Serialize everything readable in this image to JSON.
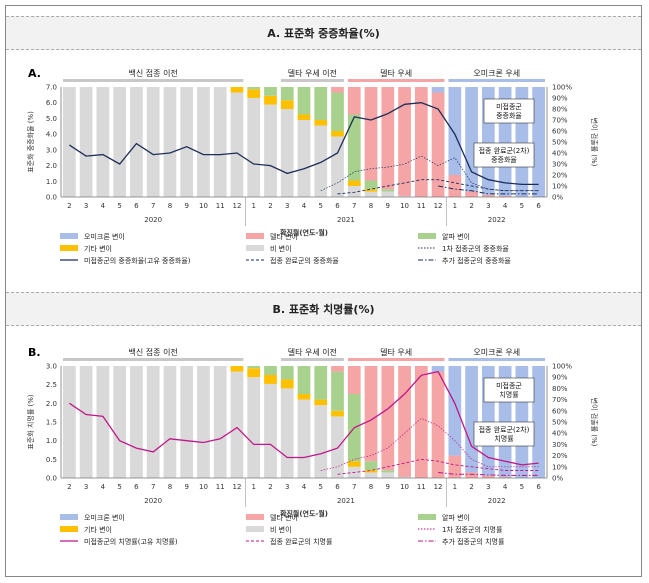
{
  "section_titles": [
    "A. 표준화 중증화율(%)",
    "B. 표준화 치명률(%)"
  ],
  "chart_data": [
    {
      "type": "bar+line",
      "panel_label": "A.",
      "segments": [
        "백신 접종 이전",
        "델타 우세 이전",
        "델타 우세",
        "오미크론 우세"
      ],
      "x_months": [
        "2",
        "3",
        "4",
        "5",
        "6",
        "7",
        "8",
        "9",
        "10",
        "11",
        "12",
        "1",
        "2",
        "3",
        "4",
        "5",
        "6",
        "7",
        "8",
        "9",
        "10",
        "11",
        "12",
        "1",
        "2",
        "3",
        "4",
        "5",
        "6"
      ],
      "year_labels": [
        "2020",
        "2021",
        "2022"
      ],
      "xlabel": "확진월(연도-월)",
      "ylabel": "표준화 중증화율 (%)",
      "y2label": "변이 검출률 (%)",
      "ylim": [
        0,
        7
      ],
      "y_ticks": [
        "0.0",
        "1.0",
        "2.0",
        "3.0",
        "4.0",
        "5.0",
        "6.0",
        "7.0"
      ],
      "y2_ticks": [
        "0%",
        "10%",
        "20%",
        "30%",
        "40%",
        "50%",
        "60%",
        "70%",
        "80%",
        "90%",
        "100%"
      ],
      "variant_share_pct": {
        "omicron": [
          0,
          0,
          0,
          0,
          0,
          0,
          0,
          0,
          0,
          0,
          0,
          0,
          0,
          0,
          0,
          0,
          0,
          0,
          0,
          0,
          0,
          0,
          5,
          80,
          95,
          98,
          99,
          100,
          100
        ],
        "delta": [
          0,
          0,
          0,
          0,
          0,
          0,
          0,
          0,
          0,
          0,
          0,
          0,
          0,
          0,
          0,
          0,
          5,
          25,
          85,
          93,
          99,
          100,
          95,
          20,
          5,
          2,
          1,
          0,
          0
        ],
        "alpha": [
          0,
          0,
          0,
          0,
          0,
          0,
          0,
          0,
          0,
          0,
          0,
          2,
          8,
          12,
          25,
          30,
          35,
          60,
          8,
          2,
          0,
          0,
          0,
          0,
          0,
          0,
          0,
          0,
          0
        ],
        "other": [
          0,
          0,
          0,
          0,
          0,
          0,
          0,
          0,
          0,
          0,
          5,
          8,
          8,
          8,
          5,
          5,
          5,
          5,
          2,
          0,
          0,
          0,
          0,
          0,
          0,
          0,
          0,
          0,
          0
        ],
        "none": [
          100,
          100,
          100,
          100,
          100,
          100,
          100,
          100,
          100,
          100,
          95,
          90,
          84,
          80,
          70,
          65,
          55,
          10,
          5,
          5,
          1,
          0,
          0,
          0,
          0,
          0,
          0,
          0,
          0
        ]
      },
      "series": [
        {
          "name": "미접종군의 중증화율(고유 중증화율)",
          "values": [
            3.3,
            2.6,
            2.7,
            2.1,
            3.4,
            2.7,
            2.8,
            3.2,
            2.7,
            2.7,
            2.8,
            2.1,
            2.0,
            1.5,
            1.8,
            2.2,
            2.8,
            5.1,
            4.9,
            5.3,
            5.9,
            6.0,
            5.6,
            4.0,
            1.6,
            1.1,
            0.9,
            0.8,
            0.8
          ]
        },
        {
          "name": "1차 접종군의 중증화율",
          "values": [
            null,
            null,
            null,
            null,
            null,
            null,
            null,
            null,
            null,
            null,
            null,
            null,
            null,
            null,
            null,
            0.4,
            0.9,
            1.6,
            1.8,
            1.9,
            2.1,
            2.6,
            2.0,
            2.5,
            0.9,
            0.5,
            0.4,
            0.4,
            0.4
          ]
        },
        {
          "name": "접종 완료군의 중증화율",
          "values": [
            null,
            null,
            null,
            null,
            null,
            null,
            null,
            null,
            null,
            null,
            null,
            null,
            null,
            null,
            null,
            null,
            0.2,
            0.3,
            0.5,
            0.7,
            0.9,
            1.1,
            1.1,
            0.9,
            0.7,
            0.5,
            0.4,
            0.4,
            0.4
          ]
        },
        {
          "name": "추가 접종군의 중증화율",
          "values": [
            null,
            null,
            null,
            null,
            null,
            null,
            null,
            null,
            null,
            null,
            null,
            null,
            null,
            null,
            null,
            null,
            null,
            null,
            null,
            null,
            null,
            null,
            0.7,
            0.5,
            0.4,
            0.2,
            0.2,
            0.2,
            0.2
          ]
        }
      ],
      "annotations": [
        "미접종군 중증화율",
        "접종 완료군(2차) 중증화율"
      ],
      "legend": [
        "오미크론 변이",
        "델타 변이",
        "알파 변이",
        "기타 변이",
        "비 변이",
        "1차 접종군의 중증화율",
        "미접종군의 중증화율(고유 중증화율)",
        "접종 완료군의 중증화율",
        "추가 접종군의 중증화율"
      ]
    },
    {
      "type": "bar+line",
      "panel_label": "B.",
      "segments": [
        "백신 접종 이전",
        "델타 우세 이전",
        "델타 우세",
        "오미크론 우세"
      ],
      "x_months": [
        "2",
        "3",
        "4",
        "5",
        "6",
        "7",
        "8",
        "9",
        "10",
        "11",
        "12",
        "1",
        "2",
        "3",
        "4",
        "5",
        "6",
        "7",
        "8",
        "9",
        "10",
        "11",
        "12",
        "1",
        "2",
        "3",
        "4",
        "5",
        "6"
      ],
      "year_labels": [
        "2020",
        "2021",
        "2022"
      ],
      "xlabel": "확진월(연도-월)",
      "ylabel": "표준화 치명률 (%)",
      "y2label": "변이 검출률 (%)",
      "ylim": [
        0,
        3
      ],
      "y_ticks": [
        "0.0",
        "0.5",
        "1.0",
        "1.5",
        "2.0",
        "2.5",
        "3.0"
      ],
      "y2_ticks": [
        "0%",
        "10%",
        "20%",
        "30%",
        "40%",
        "50%",
        "60%",
        "70%",
        "80%",
        "90%",
        "100%"
      ],
      "variant_share_pct": {
        "omicron": [
          0,
          0,
          0,
          0,
          0,
          0,
          0,
          0,
          0,
          0,
          0,
          0,
          0,
          0,
          0,
          0,
          0,
          0,
          0,
          0,
          0,
          0,
          5,
          80,
          95,
          98,
          99,
          100,
          100
        ],
        "delta": [
          0,
          0,
          0,
          0,
          0,
          0,
          0,
          0,
          0,
          0,
          0,
          0,
          0,
          0,
          0,
          0,
          5,
          25,
          85,
          93,
          99,
          100,
          95,
          20,
          5,
          2,
          1,
          0,
          0
        ],
        "alpha": [
          0,
          0,
          0,
          0,
          0,
          0,
          0,
          0,
          0,
          0,
          0,
          2,
          8,
          12,
          25,
          30,
          35,
          60,
          8,
          2,
          0,
          0,
          0,
          0,
          0,
          0,
          0,
          0,
          0
        ],
        "other": [
          0,
          0,
          0,
          0,
          0,
          0,
          0,
          0,
          0,
          0,
          5,
          8,
          8,
          8,
          5,
          5,
          5,
          5,
          2,
          0,
          0,
          0,
          0,
          0,
          0,
          0,
          0,
          0,
          0
        ],
        "none": [
          100,
          100,
          100,
          100,
          100,
          100,
          100,
          100,
          100,
          100,
          95,
          90,
          84,
          80,
          70,
          65,
          55,
          10,
          5,
          5,
          1,
          0,
          0,
          0,
          0,
          0,
          0,
          0,
          0
        ]
      },
      "series": [
        {
          "name": "미접종군의 치명률(고유 치명률)",
          "values": [
            2.0,
            1.7,
            1.65,
            1.0,
            0.8,
            0.7,
            1.05,
            1.0,
            0.95,
            1.05,
            1.35,
            0.9,
            0.9,
            0.55,
            0.55,
            0.65,
            0.8,
            1.35,
            1.55,
            1.85,
            2.25,
            2.75,
            2.85,
            2.0,
            0.85,
            0.55,
            0.45,
            0.35,
            0.4
          ]
        },
        {
          "name": "1차 접종군의 치명률",
          "values": [
            null,
            null,
            null,
            null,
            null,
            null,
            null,
            null,
            null,
            null,
            null,
            null,
            null,
            null,
            null,
            0.2,
            0.3,
            0.5,
            0.6,
            0.8,
            1.2,
            1.6,
            1.4,
            1.0,
            0.5,
            0.3,
            0.3,
            0.3,
            0.3
          ]
        },
        {
          "name": "접종 완료군의 치명률",
          "values": [
            null,
            null,
            null,
            null,
            null,
            null,
            null,
            null,
            null,
            null,
            null,
            null,
            null,
            null,
            null,
            null,
            0.1,
            0.15,
            0.2,
            0.3,
            0.4,
            0.5,
            0.45,
            0.35,
            0.3,
            0.25,
            0.2,
            0.2,
            0.2
          ]
        },
        {
          "name": "추가 접종군의 치명률",
          "values": [
            null,
            null,
            null,
            null,
            null,
            null,
            null,
            null,
            null,
            null,
            null,
            null,
            null,
            null,
            null,
            null,
            null,
            null,
            null,
            null,
            null,
            null,
            0.15,
            0.1,
            0.1,
            0.08,
            0.07,
            0.07,
            0.07
          ]
        }
      ],
      "annotations": [
        "미접종군 치명률",
        "접종 완료군(2차) 치명률"
      ],
      "legend": [
        "오미크론 변이",
        "델타 변이",
        "알파 변이",
        "기타 변이",
        "비 변이",
        "1차 접종군의 치명률",
        "미접종군의 치명률(고유 치명률)",
        "접종 완료군의 치명률",
        "추가 접종군의 치명률"
      ]
    }
  ],
  "colors": {
    "omicron": "#a8bde8",
    "delta": "#f5a5a5",
    "alpha": "#a9d18e",
    "other": "#ffc000",
    "none": "#d9d9d9",
    "line_a": "#1f2d5a",
    "line_b": "#c0168a"
  }
}
